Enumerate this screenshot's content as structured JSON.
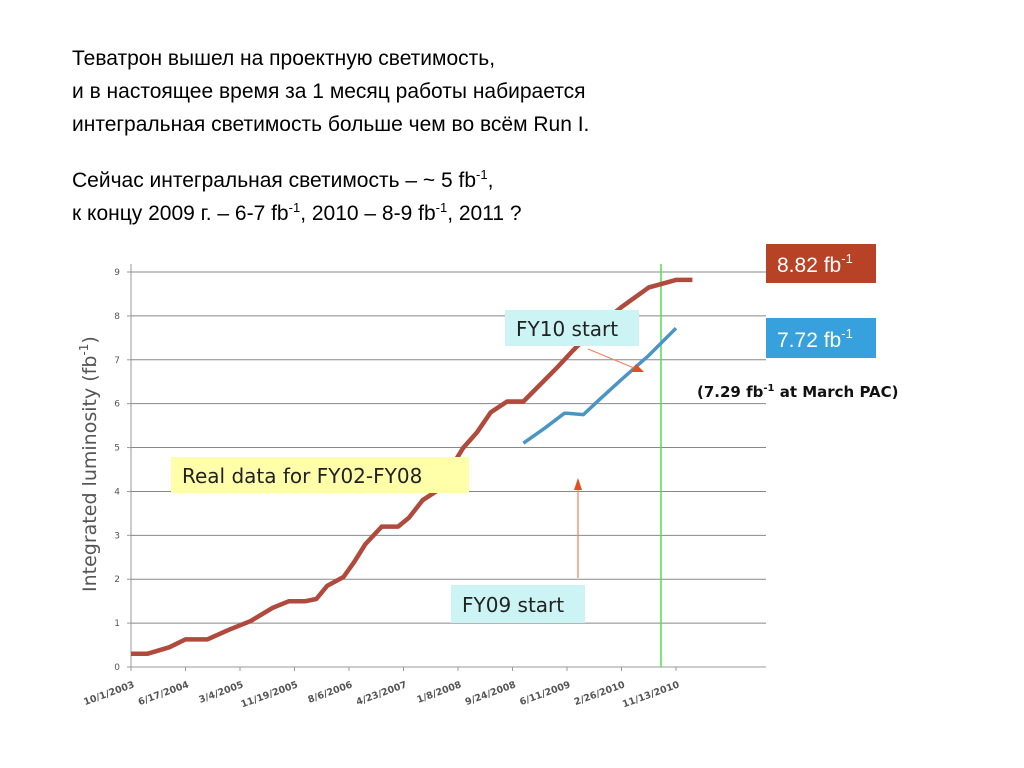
{
  "heading": {
    "line1": "Теватрон вышел на проектную светимость,",
    "line2": "и в настоящее время за 1 месяц работы набирается",
    "line3": "интегральная светимость больше чем во всём Run I.",
    "line4_a": "Сейчас интегральная светимость – ~ 5 fb",
    "line4_sup": "-1",
    "line4_b": ",",
    "line5_a": "к концу 2009 г. – 6-7 fb",
    "line5_sup1": "-1",
    "line5_b": ",  2010 – 8-9 fb",
    "line5_sup2": "-1",
    "line5_c": ",  2011 ?"
  },
  "chart_data": {
    "type": "line",
    "ylabel_main": "Integrated luminosity (fb",
    "ylabel_sup": "-1",
    "ylabel_close": ")",
    "ylim": [
      0,
      9
    ],
    "yticks": [
      "0",
      "1",
      "2",
      "3",
      "4",
      "5",
      "6",
      "7",
      "8",
      "9"
    ],
    "xticks": [
      "10/1/2003",
      "6/17/2004",
      "3/4/2005",
      "11/19/2005",
      "8/6/2006",
      "4/23/2007",
      "1/8/2008",
      "9/24/2008",
      "6/11/2009",
      "2/26/2010",
      "11/13/2010"
    ],
    "grid": "horizontal",
    "colors": {
      "real_data": "#b04a3c",
      "projection_high": "#b04a3c",
      "projection_low": "#4a95c4",
      "marker_line": "#55dd55",
      "grid": "#888888"
    },
    "series": [
      {
        "name": "8.82 fb-1",
        "x": [
          0,
          0.3,
          0.7,
          1.0,
          1.4,
          1.8,
          2.2,
          2.6,
          2.9,
          3.2,
          3.4,
          3.6,
          3.9,
          4.1,
          4.3,
          4.6,
          4.9,
          5.1,
          5.35,
          5.6,
          5.9,
          6.1,
          6.35,
          6.6,
          6.9,
          7.2,
          7.4,
          7.8,
          8.1,
          8.5,
          9.0,
          9.5,
          10.0,
          10.3
        ],
        "y": [
          0.3,
          0.3,
          0.45,
          0.63,
          0.63,
          0.85,
          1.05,
          1.35,
          1.5,
          1.5,
          1.55,
          1.85,
          2.05,
          2.4,
          2.8,
          3.2,
          3.2,
          3.4,
          3.8,
          4.0,
          4.6,
          5.0,
          5.35,
          5.8,
          6.05,
          6.05,
          6.3,
          6.8,
          7.2,
          7.7,
          8.2,
          8.65,
          8.82,
          8.82
        ]
      },
      {
        "name": "7.72 fb-1",
        "x": [
          7.2,
          7.6,
          7.95,
          8.0,
          8.3,
          8.6,
          9.0,
          9.5,
          10.0
        ],
        "y": [
          5.1,
          5.45,
          5.78,
          5.78,
          5.75,
          6.1,
          6.55,
          7.1,
          7.72
        ]
      }
    ],
    "annotations": {
      "real_data_label": "Real data for FY02-FY08",
      "fy09_label": "FY09 start",
      "fy10_label": "FY10 start",
      "pac_label": "(7.29 fb",
      "pac_sup": "-1",
      "pac_tail": " at March PAC)",
      "high_value_main": "8.82 fb",
      "high_value_sup": "-1",
      "low_value_main": "7.72 fb",
      "low_value_sup": "-1"
    }
  }
}
